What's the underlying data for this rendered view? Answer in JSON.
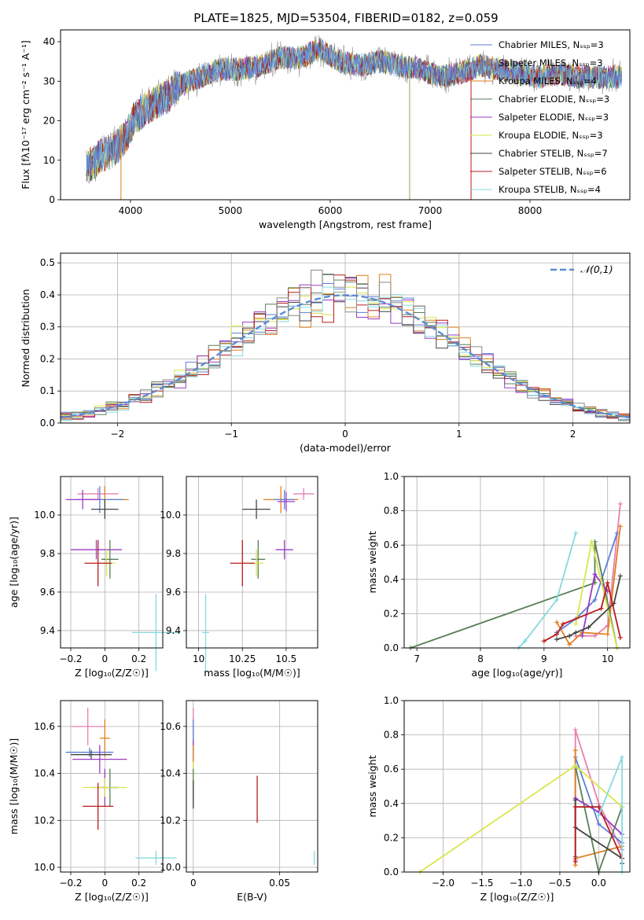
{
  "title": "PLATE=1825, MJD=53504, FIBERID=0182, z=0.059",
  "legend_colors": [
    "#5b7fd6",
    "#8a8a8a",
    "#e0801e",
    "#5a7f5a",
    "#9b3bc4",
    "#d9e64a",
    "#444444",
    "#b81c1c",
    "#86d9e0"
  ],
  "chart_data": [
    {
      "type": "line",
      "xlabel": "wavelength [Angstrom, rest frame]",
      "ylabel": "Flux [fλ10⁻¹⁷ erg cm⁻² s⁻¹ A⁻¹]",
      "xlim": [
        3300,
        9000
      ],
      "ylim": [
        0,
        43
      ],
      "xticks": [
        4000,
        5000,
        6000,
        7000,
        8000
      ],
      "yticks": [
        0,
        10,
        20,
        30,
        40
      ],
      "grid": false,
      "legend_position": "top-right",
      "legend": [
        "Chabrier MILES, Nₛₛₚ=3",
        "Salpeter MILES, Nₛₛₚ=3",
        "Kroupa MILES, Nₛₛₚ=4",
        "Chabrier ELODIE, Nₛₛₚ=3",
        "Salpeter ELODIE, Nₛₛₚ=3",
        "Kroupa ELODIE, Nₛₛₚ=3",
        "Chabrier STELIB, Nₛₛₚ=7",
        "Salpeter STELIB, Nₛₛₚ=6",
        "Kroupa STELIB, Nₛₛₚ=4"
      ],
      "continuum": {
        "x": [
          3560,
          3700,
          3850,
          3950,
          4050,
          4200,
          4350,
          4500,
          4700,
          4900,
          5100,
          5300,
          5500,
          5700,
          5900,
          6100,
          6300,
          6500,
          6700,
          6900,
          7100,
          7300,
          7500,
          7700,
          7900,
          8100,
          8300,
          8500,
          8700,
          8900
        ],
        "y": [
          8,
          11,
          13,
          16,
          21,
          24,
          26,
          29,
          31,
          33,
          33,
          34,
          36,
          36,
          38,
          35,
          34,
          35,
          34,
          33,
          31,
          32,
          34,
          33,
          32,
          31,
          32,
          31,
          31,
          31
        ]
      }
    },
    {
      "type": "histogram",
      "xlabel": "(data-model)/error",
      "ylabel": "Normed distribution",
      "xlim": [
        -2.5,
        2.5
      ],
      "ylim": [
        0,
        0.53
      ],
      "xticks": [
        -2,
        -1,
        0,
        1,
        2
      ],
      "yticks": [
        0.0,
        0.1,
        0.2,
        0.3,
        0.4,
        0.5
      ],
      "grid": true,
      "legend_position": "top-right",
      "legend": [
        "𝒩(0,1)"
      ],
      "bin_width": 0.1,
      "reference": "N(0,1)"
    },
    {
      "type": "scatter",
      "xlabel": "Z [log₁₀(Z/Z☉)]",
      "ylabel": "age  [log₁₀(age/yr)]",
      "xlim": [
        -0.26,
        0.34
      ],
      "ylim": [
        9.31,
        10.2
      ],
      "xticks": [
        -0.2,
        0.0,
        0.2
      ],
      "yticks": [
        9.4,
        9.6,
        9.8,
        10.0
      ],
      "grid": true,
      "points": [
        {
          "x": -0.04,
          "xerr": 0.12,
          "y": 10.11,
          "yerr": 0.03
        },
        {
          "x": 0.0,
          "xerr": 0.14,
          "y": 10.08,
          "yerr": 0.07
        },
        {
          "x": -0.03,
          "xerr": 0.14,
          "y": 10.08,
          "yerr": 0.07
        },
        {
          "x": -0.13,
          "xerr": 0.1,
          "y": 10.08,
          "yerr": 0.05
        },
        {
          "x": 0.0,
          "xerr": 0.08,
          "y": 10.03,
          "yerr": 0.05
        },
        {
          "x": -0.05,
          "xerr": 0.15,
          "y": 9.82,
          "yerr": 0.05
        },
        {
          "x": 0.03,
          "xerr": 0.05,
          "y": 9.77,
          "yerr": 0.1
        },
        {
          "x": 0.01,
          "xerr": 0.05,
          "y": 9.75,
          "yerr": 0.07
        },
        {
          "x": -0.04,
          "xerr": 0.08,
          "y": 9.75,
          "yerr": 0.12
        },
        {
          "x": 0.3,
          "xerr": 0.14,
          "y": 9.39,
          "yerr": 0.2
        }
      ]
    },
    {
      "type": "scatter",
      "xlabel": "mass [log₁₀(M/M☉)]",
      "xlim": [
        9.93,
        10.68
      ],
      "ylim": [
        9.31,
        10.2
      ],
      "xticks": [
        10.0,
        10.25,
        10.5
      ],
      "yticks": [
        9.4,
        9.6,
        9.8,
        10.0
      ],
      "grid": true,
      "points": [
        {
          "x": 10.6,
          "xerr": 0.06,
          "y": 10.11,
          "yerr": 0.03
        },
        {
          "x": 10.47,
          "xerr": 0.1,
          "y": 10.08,
          "yerr": 0.07
        },
        {
          "x": 10.49,
          "xerr": 0.06,
          "y": 10.08,
          "yerr": 0.05
        },
        {
          "x": 10.5,
          "xerr": 0.05,
          "y": 10.07,
          "yerr": 0.05
        },
        {
          "x": 10.33,
          "xerr": 0.08,
          "y": 10.03,
          "yerr": 0.05
        },
        {
          "x": 10.49,
          "xerr": 0.05,
          "y": 9.82,
          "yerr": 0.05
        },
        {
          "x": 10.34,
          "xerr": 0.04,
          "y": 9.77,
          "yerr": 0.1
        },
        {
          "x": 10.33,
          "xerr": 0.04,
          "y": 9.75,
          "yerr": 0.07
        },
        {
          "x": 10.25,
          "xerr": 0.07,
          "y": 9.75,
          "yerr": 0.12
        },
        {
          "x": 10.04,
          "xerr": 0.02,
          "y": 9.39,
          "yerr": 0.2
        }
      ]
    },
    {
      "type": "line",
      "xlabel": "age  [log₁₀(age/yr)]",
      "ylabel": "mass weight",
      "xlim": [
        6.8,
        10.35
      ],
      "ylim": [
        0,
        1.0
      ],
      "xticks": [
        7,
        8,
        9,
        10
      ],
      "yticks": [
        0.0,
        0.2,
        0.4,
        0.6,
        0.8,
        1.0
      ],
      "grid": true,
      "series": [
        {
          "x": [
            9.5,
            9.8,
            10.0,
            10.2
          ],
          "y": [
            0.07,
            0.07,
            0.13,
            0.84
          ]
        },
        {
          "x": [
            9.2,
            9.5,
            9.8,
            10.15
          ],
          "y": [
            0.09,
            0.17,
            0.28,
            0.67
          ]
        },
        {
          "x": [
            9.2,
            9.4,
            9.6,
            10.0,
            10.2
          ],
          "y": [
            0.15,
            0.02,
            0.09,
            0.08,
            0.71
          ]
        },
        {
          "x": [
            6.9,
            9.8,
            9.8,
            10.15
          ],
          "y": [
            0.0,
            0.38,
            0.62,
            0.0
          ]
        },
        {
          "x": [
            9.6,
            9.8,
            10.0
          ],
          "y": [
            0.07,
            0.43,
            0.33
          ]
        },
        {
          "x": [
            9.5,
            9.75,
            10.15
          ],
          "y": [
            0.14,
            0.62,
            0.0
          ]
        },
        {
          "x": [
            9.2,
            9.4,
            9.5,
            9.7,
            10.1,
            10.2
          ],
          "y": [
            0.05,
            0.07,
            0.09,
            0.12,
            0.26,
            0.42
          ]
        },
        {
          "x": [
            9.0,
            9.2,
            9.3,
            9.9,
            10.0,
            10.2
          ],
          "y": [
            0.04,
            0.08,
            0.14,
            0.23,
            0.38,
            0.06
          ]
        },
        {
          "x": [
            8.6,
            8.7,
            9.2,
            9.5
          ],
          "y": [
            0.0,
            0.04,
            0.28,
            0.67
          ]
        }
      ]
    },
    {
      "type": "scatter",
      "xlabel": "Z [log₁₀(Z/Z☉)]",
      "ylabel": "mass [log₁₀(M/M☉)]",
      "xlim": [
        -0.26,
        0.34
      ],
      "ylim": [
        9.98,
        10.71
      ],
      "xticks": [
        -0.2,
        0.0,
        0.2
      ],
      "yticks": [
        10.0,
        10.2,
        10.4,
        10.6
      ],
      "grid": true,
      "points": [
        {
          "x": -0.1,
          "xerr": 0.1,
          "y": 10.6,
          "yerr": 0.08
        },
        {
          "x": 0.0,
          "xerr": 0.03,
          "y": 10.55,
          "yerr": 0.08
        },
        {
          "x": -0.09,
          "xerr": 0.14,
          "y": 10.49,
          "yerr": 0.02
        },
        {
          "x": -0.03,
          "xerr": 0.16,
          "y": 10.46,
          "yerr": 0.06
        },
        {
          "x": -0.08,
          "xerr": 0.12,
          "y": 10.48,
          "yerr": 0.02
        },
        {
          "x": 0.0,
          "xerr": 0.07,
          "y": 10.34,
          "yerr": 0.08
        },
        {
          "x": 0.03,
          "xerr": 0.05,
          "y": 10.34,
          "yerr": 0.08
        },
        {
          "x": 0.0,
          "xerr": 0.13,
          "y": 10.34,
          "yerr": 0.04
        },
        {
          "x": -0.04,
          "xerr": 0.09,
          "y": 10.26,
          "yerr": 0.1
        },
        {
          "x": 0.3,
          "xerr": 0.12,
          "y": 10.04,
          "yerr": 0.03
        }
      ]
    },
    {
      "type": "scatter",
      "xlabel": "E(B-V)",
      "xlim": [
        -0.004,
        0.072
      ],
      "ylim": [
        9.98,
        10.71
      ],
      "xticks": [
        0.0,
        0.05
      ],
      "yticks": [
        10.0,
        10.2,
        10.4,
        10.6
      ],
      "grid": true,
      "points": [
        {
          "x": 0.0,
          "y": 10.6,
          "yerr": 0.08
        },
        {
          "x": 0.0,
          "y": 10.55,
          "yerr": 0.08
        },
        {
          "x": 0.0,
          "y": 10.49,
          "yerr": 0.05
        },
        {
          "x": 0.0,
          "y": 10.46,
          "yerr": 0.06
        },
        {
          "x": 0.0,
          "y": 10.4,
          "yerr": 0.05
        },
        {
          "x": 0.0,
          "y": 10.34,
          "yerr": 0.08
        },
        {
          "x": 0.0,
          "y": 10.31,
          "yerr": 0.06
        },
        {
          "x": 0.037,
          "y": 10.29,
          "yerr": 0.1
        },
        {
          "x": 0.07,
          "y": 10.04,
          "yerr": 0.03
        }
      ]
    },
    {
      "type": "line",
      "xlabel": "Z [log₁₀(Z/Z☉)]",
      "ylabel": "mass weight",
      "xlim": [
        -2.5,
        0.4
      ],
      "ylim": [
        0,
        1.0
      ],
      "xticks": [
        -2.0,
        -1.5,
        -1.0,
        -0.5,
        0.0
      ],
      "yticks": [
        0.0,
        0.2,
        0.4,
        0.6,
        0.8,
        1.0
      ],
      "grid": true,
      "series": [
        {
          "x": [
            -0.3,
            -0.3,
            0.0,
            0.3
          ],
          "y": [
            0.07,
            0.83,
            0.4,
            0.13
          ]
        },
        {
          "x": [
            -0.3,
            -0.3,
            0.0,
            0.3
          ],
          "y": [
            0.09,
            0.67,
            0.28,
            0.17
          ]
        },
        {
          "x": [
            -0.3,
            -0.3,
            -0.3,
            0.3
          ],
          "y": [
            0.04,
            0.71,
            0.08,
            0.15
          ]
        },
        {
          "x": [
            -0.3,
            0.0,
            0.3
          ],
          "y": [
            0.62,
            0.0,
            0.38
          ]
        },
        {
          "x": [
            -0.3,
            0.0,
            0.3
          ],
          "y": [
            0.43,
            0.35,
            0.22
          ]
        },
        {
          "x": [
            -2.3,
            -0.3,
            0.3
          ],
          "y": [
            0.0,
            0.62,
            0.38
          ]
        },
        {
          "x": [
            -0.3,
            -0.3,
            0.3,
            0.3
          ],
          "y": [
            0.42,
            0.26,
            0.08,
            0.05
          ]
        },
        {
          "x": [
            -0.3,
            -0.3,
            0.0,
            0.3
          ],
          "y": [
            0.06,
            0.38,
            0.38,
            0.08
          ]
        },
        {
          "x": [
            0.3,
            0.3,
            0.0
          ],
          "y": [
            0.0,
            0.67,
            0.33
          ]
        }
      ]
    }
  ]
}
